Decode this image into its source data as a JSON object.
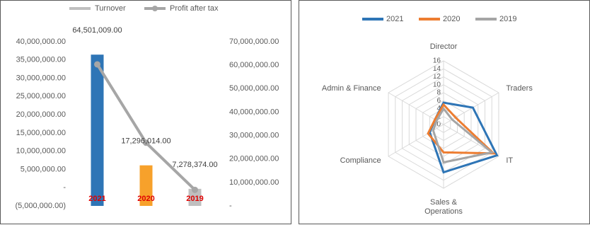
{
  "chart_data": [
    {
      "type": "combo",
      "categories": [
        "2021",
        "2020",
        "2019"
      ],
      "series": [
        {
          "name": "Turnover",
          "kind": "bar",
          "axis": "y2",
          "colors": [
            "#2e75b6",
            "#f7a12b",
            "#bfbfbf"
          ],
          "color": "#bfbfbf",
          "values": [
            64501009,
            17296014,
            7278374
          ],
          "value_labels": [
            "64,501,009.00",
            "17,296,014.00",
            "7,278,374.00"
          ]
        },
        {
          "name": "Profit after tax",
          "kind": "line",
          "color": "#a6a6a6",
          "values": [
            33800000,
            12300000,
            -600000
          ]
        }
      ],
      "ylim": [
        -5000000,
        40000000
      ],
      "yticks": [
        {
          "value": -5000000,
          "label": "(5,000,000.00)"
        },
        {
          "value": 0,
          "label": "-"
        },
        {
          "value": 5000000,
          "label": "5,000,000.00"
        },
        {
          "value": 10000000,
          "label": "10,000,000.00"
        },
        {
          "value": 15000000,
          "label": "15,000,000.00"
        },
        {
          "value": 20000000,
          "label": "20,000,000.00"
        },
        {
          "value": 25000000,
          "label": "25,000,000.00"
        },
        {
          "value": 30000000,
          "label": "30,000,000.00"
        },
        {
          "value": 35000000,
          "label": "35,000,000.00"
        },
        {
          "value": 40000000,
          "label": "40,000,000.00"
        }
      ],
      "y2lim": [
        0,
        70000000
      ],
      "y2ticks": [
        {
          "value": 0,
          "label": "-"
        },
        {
          "value": 10000000,
          "label": "10,000,000.00"
        },
        {
          "value": 20000000,
          "label": "20,000,000.00"
        },
        {
          "value": 30000000,
          "label": "30,000,000.00"
        },
        {
          "value": 40000000,
          "label": "40,000,000.00"
        },
        {
          "value": 50000000,
          "label": "50,000,000.00"
        },
        {
          "value": 60000000,
          "label": "60,000,000.00"
        },
        {
          "value": 70000000,
          "label": "70,000,000.00"
        }
      ],
      "category_color": "#e00000"
    },
    {
      "type": "radar",
      "categories": [
        "Director",
        "Traders",
        "IT",
        "Sales & Operations",
        "Compliance",
        "Admin & Finance"
      ],
      "series": [
        {
          "name": "2021",
          "color": "#2e75b6",
          "values": [
            5.5,
            8.5,
            15.5,
            12,
            4,
            2.5
          ]
        },
        {
          "name": "2020",
          "color": "#ed7d31",
          "values": [
            5,
            3.5,
            14.5,
            7,
            4.5,
            2.5
          ]
        },
        {
          "name": "2019",
          "color": "#a5a5a5",
          "values": [
            4,
            2.5,
            14,
            9.5,
            3,
            2
          ]
        }
      ],
      "rlim": [
        0,
        16
      ],
      "rticks": [
        0,
        2,
        4,
        6,
        8,
        10,
        12,
        14,
        16
      ],
      "grid": true
    }
  ]
}
